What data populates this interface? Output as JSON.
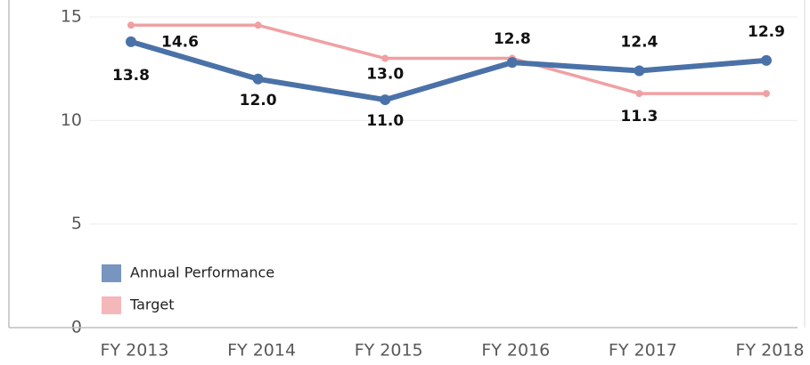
{
  "chart_data": {
    "type": "line",
    "categories": [
      "FY 2013",
      "FY 2014",
      "FY 2015",
      "FY 2016",
      "FY 2017",
      "FY 2018"
    ],
    "series": [
      {
        "name": "Annual Performance",
        "color": "#4a72a8",
        "values": [
          13.8,
          12.0,
          11.0,
          12.8,
          12.4,
          12.9
        ],
        "value_labels": [
          "13.8",
          "12.0",
          "11.0",
          "12.8",
          "12.4",
          "12.9"
        ]
      },
      {
        "name": "Target",
        "color": "#f0a0a3",
        "values": [
          14.6,
          14.6,
          13.0,
          13.0,
          11.3,
          11.3
        ],
        "value_labels": [
          "14.6",
          null,
          "13.0",
          null,
          "11.3",
          null
        ]
      }
    ],
    "ylim": [
      0,
      15
    ],
    "yticks": [
      0,
      5,
      10,
      15
    ],
    "grid": true,
    "legend": "lower left"
  }
}
